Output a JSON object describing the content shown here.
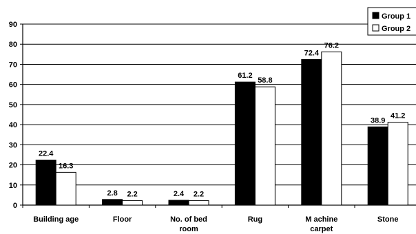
{
  "chart_data": {
    "type": "bar",
    "title": "",
    "xlabel": "",
    "ylabel": "",
    "ylim": [
      0,
      90
    ],
    "yticks": [
      0,
      10,
      20,
      30,
      40,
      50,
      60,
      70,
      80,
      90
    ],
    "grid": true,
    "legend_position": "top-right",
    "categories": [
      [
        "Building age"
      ],
      [
        "Floor"
      ],
      [
        "No. of bed",
        "room"
      ],
      [
        "Rug"
      ],
      [
        "M achine",
        "carpet"
      ],
      [
        "Stone"
      ]
    ],
    "series": [
      {
        "name": "Group 1",
        "values": [
          22.4,
          2.8,
          2.4,
          61.2,
          72.4,
          38.9
        ],
        "labels": [
          "22.4",
          "2.8",
          "2.4",
          "61.2",
          "72.4",
          "38.9"
        ],
        "color": "#000000"
      },
      {
        "name": "Group 2",
        "values": [
          16.3,
          2.2,
          2.2,
          58.8,
          76.2,
          41.2
        ],
        "labels": [
          "16.3",
          "2.2",
          "2.2",
          "58.8",
          "76.2",
          "41.2"
        ],
        "color": "#ffffff"
      }
    ]
  }
}
